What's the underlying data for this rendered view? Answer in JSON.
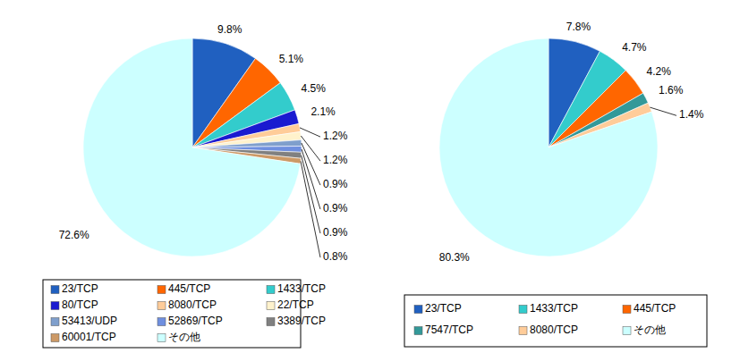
{
  "chart_data": [
    {
      "type": "pie",
      "categories": [
        "23/TCP",
        "445/TCP",
        "1433/TCP",
        "80/TCP",
        "8080/TCP",
        "22/TCP",
        "53413/UDP",
        "52869/TCP",
        "3389/TCP",
        "60001/TCP",
        "その他"
      ],
      "values": [
        9.8,
        5.1,
        4.5,
        2.1,
        1.2,
        1.2,
        0.9,
        0.9,
        0.9,
        0.8,
        72.6
      ],
      "value_labels": [
        "9.8%",
        "5.1%",
        "4.5%",
        "2.1%",
        "1.2%",
        "1.2%",
        "0.9%",
        "0.9%",
        "0.9%",
        "0.8%",
        "72.6%"
      ],
      "colors": [
        "#2060c0",
        "#ff6600",
        "#33cccc",
        "#1a1ad0",
        "#ffcc99",
        "#fff2cc",
        "#7f9fcc",
        "#6f8fdf",
        "#808080",
        "#cc9966",
        "#ccffff"
      ],
      "data_labels": true,
      "legend": "bottom"
    },
    {
      "type": "pie",
      "categories": [
        "23/TCP",
        "1433/TCP",
        "445/TCP",
        "7547/TCP",
        "8080/TCP",
        "その他"
      ],
      "values": [
        7.8,
        4.7,
        4.2,
        1.6,
        1.4,
        80.3
      ],
      "value_labels": [
        "7.8%",
        "4.7%",
        "4.2%",
        "1.6%",
        "1.4%",
        "80.3%"
      ],
      "colors": [
        "#2060c0",
        "#33cccc",
        "#ff6600",
        "#339999",
        "#ffcc99",
        "#ccffff"
      ],
      "data_labels": true,
      "legend": "bottom"
    }
  ]
}
